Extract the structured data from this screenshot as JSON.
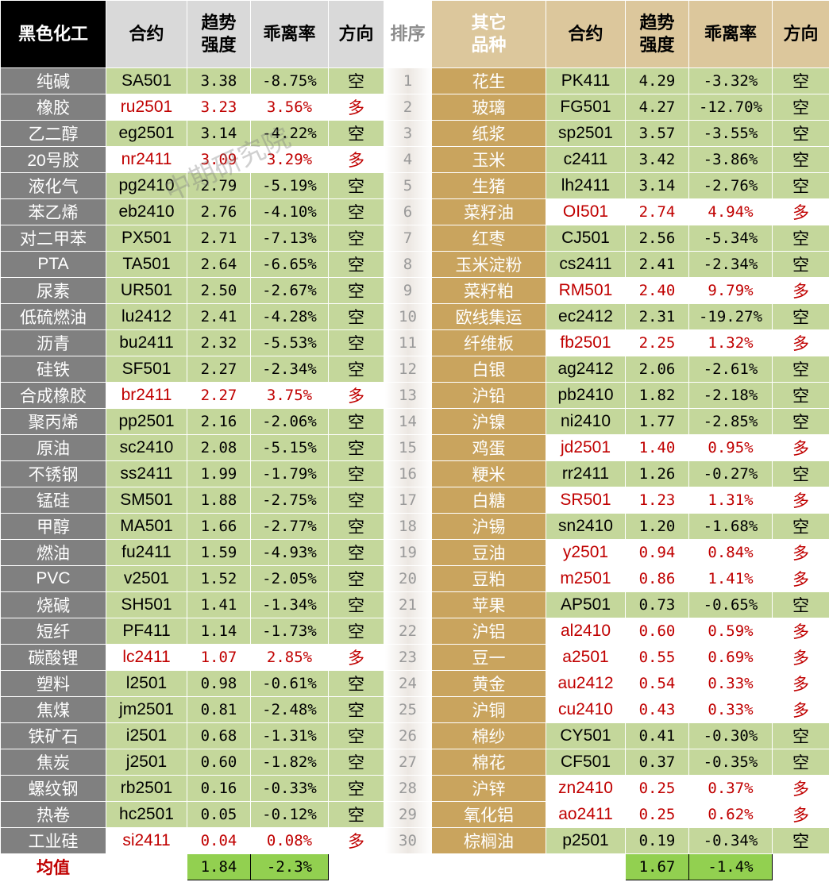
{
  "header": {
    "left_category": "黑色化工",
    "contract": "合约",
    "strength": "趋势\n强度",
    "deviation": "乖离率",
    "direction": "方向",
    "rank": "排序",
    "right_category": "其它\n品种"
  },
  "left_rows": [
    [
      "纯碱",
      "SA501",
      "3.38",
      "-8.75%",
      "空"
    ],
    [
      "橡胶",
      "ru2501",
      "3.23",
      "3.56%",
      "多"
    ],
    [
      "乙二醇",
      "eg2501",
      "3.14",
      "-4.22%",
      "空"
    ],
    [
      "20号胶",
      "nr2411",
      "3.09",
      "3.29%",
      "多"
    ],
    [
      "液化气",
      "pg2410",
      "2.79",
      "-5.19%",
      "空"
    ],
    [
      "苯乙烯",
      "eb2410",
      "2.76",
      "-4.10%",
      "空"
    ],
    [
      "对二甲苯",
      "PX501",
      "2.71",
      "-7.13%",
      "空"
    ],
    [
      "PTA",
      "TA501",
      "2.64",
      "-6.65%",
      "空"
    ],
    [
      "尿素",
      "UR501",
      "2.50",
      "-2.67%",
      "空"
    ],
    [
      "低硫燃油",
      "lu2412",
      "2.41",
      "-4.28%",
      "空"
    ],
    [
      "沥青",
      "bu2411",
      "2.32",
      "-5.53%",
      "空"
    ],
    [
      "硅铁",
      "SF501",
      "2.27",
      "-2.34%",
      "空"
    ],
    [
      "合成橡胶",
      "br2411",
      "2.27",
      "3.75%",
      "多"
    ],
    [
      "聚丙烯",
      "pp2501",
      "2.16",
      "-2.06%",
      "空"
    ],
    [
      "原油",
      "sc2410",
      "2.08",
      "-5.15%",
      "空"
    ],
    [
      "不锈钢",
      "ss2411",
      "1.99",
      "-1.79%",
      "空"
    ],
    [
      "锰硅",
      "SM501",
      "1.88",
      "-2.75%",
      "空"
    ],
    [
      "甲醇",
      "MA501",
      "1.66",
      "-2.77%",
      "空"
    ],
    [
      "燃油",
      "fu2411",
      "1.59",
      "-4.93%",
      "空"
    ],
    [
      "PVC",
      "v2501",
      "1.52",
      "-2.05%",
      "空"
    ],
    [
      "烧碱",
      "SH501",
      "1.41",
      "-1.34%",
      "空"
    ],
    [
      "短纤",
      "PF411",
      "1.14",
      "-1.73%",
      "空"
    ],
    [
      "碳酸锂",
      "lc2411",
      "1.07",
      "2.85%",
      "多"
    ],
    [
      "塑料",
      "l2501",
      "0.98",
      "-0.61%",
      "空"
    ],
    [
      "焦煤",
      "jm2501",
      "0.81",
      "-2.48%",
      "空"
    ],
    [
      "铁矿石",
      "i2501",
      "0.68",
      "-1.31%",
      "空"
    ],
    [
      "焦炭",
      "j2501",
      "0.60",
      "-1.82%",
      "空"
    ],
    [
      "螺纹钢",
      "rb2501",
      "0.16",
      "-0.33%",
      "空"
    ],
    [
      "热卷",
      "hc2501",
      "0.05",
      "-0.12%",
      "空"
    ],
    [
      "工业硅",
      "si2411",
      "0.04",
      "0.08%",
      "多"
    ]
  ],
  "ranks": [
    "1",
    "2",
    "3",
    "4",
    "5",
    "6",
    "7",
    "8",
    "9",
    "10",
    "11",
    "12",
    "13",
    "14",
    "15",
    "16",
    "17",
    "18",
    "19",
    "20",
    "21",
    "22",
    "23",
    "24",
    "25",
    "26",
    "27",
    "28",
    "29",
    "30"
  ],
  "right_rows": [
    [
      "花生",
      "PK411",
      "4.29",
      "-3.32%",
      "空"
    ],
    [
      "玻璃",
      "FG501",
      "4.27",
      "-12.70%",
      "空"
    ],
    [
      "纸浆",
      "sp2501",
      "3.57",
      "-3.55%",
      "空"
    ],
    [
      "玉米",
      "c2411",
      "3.42",
      "-3.86%",
      "空"
    ],
    [
      "生猪",
      "lh2411",
      "3.14",
      "-2.76%",
      "空"
    ],
    [
      "菜籽油",
      "OI501",
      "2.74",
      "4.94%",
      "多"
    ],
    [
      "红枣",
      "CJ501",
      "2.56",
      "-5.34%",
      "空"
    ],
    [
      "玉米淀粉",
      "cs2411",
      "2.41",
      "-2.34%",
      "空"
    ],
    [
      "菜籽粕",
      "RM501",
      "2.40",
      "9.79%",
      "多"
    ],
    [
      "欧线集运",
      "ec2412",
      "2.31",
      "-19.27%",
      "空"
    ],
    [
      "纤维板",
      "fb2501",
      "2.25",
      "1.32%",
      "多"
    ],
    [
      "白银",
      "ag2412",
      "2.06",
      "-2.61%",
      "空"
    ],
    [
      "沪铅",
      "pb2410",
      "1.82",
      "-2.18%",
      "空"
    ],
    [
      "沪镍",
      "ni2410",
      "1.77",
      "-2.85%",
      "空"
    ],
    [
      "鸡蛋",
      "jd2501",
      "1.40",
      "0.95%",
      "多"
    ],
    [
      "粳米",
      "rr2411",
      "1.26",
      "-0.27%",
      "空"
    ],
    [
      "白糖",
      "SR501",
      "1.23",
      "1.31%",
      "多"
    ],
    [
      "沪锡",
      "sn2410",
      "1.20",
      "-1.68%",
      "空"
    ],
    [
      "豆油",
      "y2501",
      "0.94",
      "0.84%",
      "多"
    ],
    [
      "豆粕",
      "m2501",
      "0.86",
      "1.41%",
      "多"
    ],
    [
      "苹果",
      "AP501",
      "0.73",
      "-0.65%",
      "空"
    ],
    [
      "沪铝",
      "al2410",
      "0.60",
      "0.59%",
      "多"
    ],
    [
      "豆一",
      "a2501",
      "0.55",
      "0.69%",
      "多"
    ],
    [
      "黄金",
      "au2412",
      "0.54",
      "0.33%",
      "多"
    ],
    [
      "沪铜",
      "cu2410",
      "0.43",
      "0.33%",
      "多"
    ],
    [
      "棉纱",
      "CY501",
      "0.41",
      "-0.30%",
      "空"
    ],
    [
      "棉花",
      "CF501",
      "0.37",
      "-0.35%",
      "空"
    ],
    [
      "沪锌",
      "zn2410",
      "0.25",
      "0.37%",
      "多"
    ],
    [
      "氧化铝",
      "ao2411",
      "0.25",
      "0.62%",
      "多"
    ],
    [
      "棕榈油",
      "p2501",
      "0.19",
      "-0.34%",
      "空"
    ]
  ],
  "footer": {
    "label": "均值",
    "left": [
      "1.84",
      "-2.3%"
    ],
    "right": [
      "1.67",
      "-1.4%"
    ]
  },
  "watermark": "中期研究院"
}
